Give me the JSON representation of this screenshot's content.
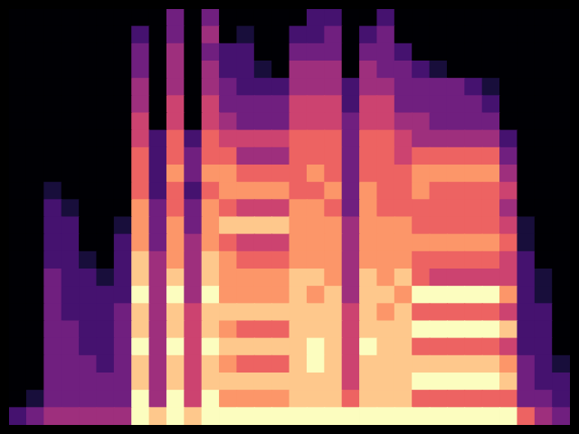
{
  "chart_data": {
    "type": "heatmap",
    "tick_labels": false,
    "grid": false,
    "cells": [
      [
        0,
        0,
        0,
        0,
        0,
        0,
        0,
        0,
        0,
        3,
        0,
        3,
        0,
        0,
        0,
        0,
        0,
        2,
        2,
        0,
        0,
        2,
        0,
        0,
        0,
        0,
        0,
        0,
        0,
        0,
        0,
        0
      ],
      [
        0,
        0,
        0,
        0,
        0,
        0,
        0,
        2,
        0,
        3,
        0,
        4,
        0,
        1,
        0,
        0,
        2,
        2,
        3,
        0,
        2,
        3,
        0,
        0,
        0,
        0,
        0,
        0,
        0,
        0,
        0,
        0
      ],
      [
        0,
        0,
        0,
        0,
        0,
        0,
        0,
        3,
        0,
        4,
        0,
        3,
        2,
        2,
        0,
        0,
        3,
        3,
        3,
        0,
        3,
        3,
        2,
        0,
        0,
        0,
        0,
        0,
        0,
        0,
        0,
        0
      ],
      [
        0,
        0,
        0,
        0,
        0,
        0,
        0,
        3,
        0,
        4,
        0,
        4,
        2,
        2,
        1,
        0,
        4,
        4,
        4,
        0,
        4,
        3,
        3,
        2,
        1,
        0,
        0,
        0,
        0,
        0,
        0,
        0
      ],
      [
        0,
        0,
        0,
        0,
        0,
        0,
        0,
        4,
        0,
        4,
        0,
        4,
        3,
        2,
        2,
        2,
        4,
        4,
        4,
        2,
        4,
        4,
        3,
        3,
        3,
        3,
        2,
        1,
        0,
        0,
        0,
        0
      ],
      [
        0,
        0,
        0,
        0,
        0,
        0,
        0,
        4,
        0,
        5,
        0,
        5,
        3,
        3,
        3,
        3,
        5,
        5,
        5,
        2,
        5,
        5,
        3,
        3,
        3,
        3,
        3,
        2,
        0,
        0,
        0,
        0
      ],
      [
        0,
        0,
        0,
        0,
        0,
        0,
        0,
        5,
        0,
        5,
        0,
        5,
        4,
        3,
        3,
        3,
        5,
        5,
        5,
        3,
        5,
        5,
        4,
        4,
        3,
        3,
        3,
        3,
        0,
        0,
        0,
        0
      ],
      [
        0,
        0,
        0,
        0,
        0,
        0,
        0,
        5,
        2,
        6,
        2,
        6,
        5,
        5,
        5,
        5,
        6,
        6,
        6,
        3,
        6,
        6,
        5,
        4,
        4,
        4,
        4,
        4,
        2,
        0,
        0,
        0
      ],
      [
        0,
        0,
        0,
        0,
        0,
        0,
        0,
        6,
        2,
        6,
        3,
        6,
        6,
        4,
        4,
        4,
        6,
        6,
        6,
        3,
        6,
        6,
        5,
        6,
        6,
        6,
        6,
        6,
        3,
        0,
        0,
        0
      ],
      [
        0,
        0,
        0,
        0,
        0,
        0,
        0,
        6,
        2,
        7,
        3,
        7,
        7,
        6,
        6,
        6,
        6,
        7,
        6,
        3,
        6,
        6,
        6,
        7,
        7,
        7,
        7,
        7,
        4,
        0,
        0,
        0
      ],
      [
        0,
        0,
        1,
        0,
        0,
        0,
        0,
        6,
        2,
        6,
        2,
        6,
        7,
        7,
        7,
        7,
        6,
        6,
        7,
        3,
        7,
        6,
        6,
        7,
        6,
        6,
        6,
        6,
        5,
        0,
        0,
        0
      ],
      [
        0,
        0,
        2,
        1,
        0,
        0,
        0,
        7,
        3,
        6,
        3,
        7,
        6,
        5,
        5,
        5,
        7,
        7,
        6,
        3,
        7,
        6,
        6,
        6,
        6,
        6,
        6,
        6,
        4,
        0,
        0,
        0
      ],
      [
        0,
        0,
        2,
        2,
        0,
        0,
        1,
        7,
        3,
        7,
        3,
        7,
        8,
        8,
        8,
        8,
        7,
        7,
        7,
        4,
        7,
        7,
        7,
        6,
        6,
        6,
        6,
        6,
        5,
        1,
        0,
        0
      ],
      [
        0,
        0,
        2,
        2,
        0,
        0,
        2,
        7,
        3,
        7,
        4,
        7,
        6,
        5,
        5,
        5,
        7,
        7,
        7,
        4,
        7,
        7,
        7,
        7,
        7,
        7,
        7,
        7,
        6,
        1,
        0,
        0
      ],
      [
        0,
        0,
        2,
        2,
        1,
        0,
        2,
        8,
        4,
        7,
        4,
        8,
        7,
        6,
        6,
        6,
        7,
        7,
        7,
        4,
        7,
        7,
        7,
        6,
        6,
        6,
        6,
        6,
        5,
        2,
        0,
        0
      ],
      [
        0,
        0,
        3,
        2,
        2,
        1,
        2,
        8,
        4,
        8,
        4,
        8,
        7,
        7,
        7,
        7,
        8,
        8,
        7,
        4,
        8,
        7,
        8,
        6,
        5,
        5,
        5,
        5,
        5,
        2,
        1,
        0
      ],
      [
        0,
        0,
        3,
        2,
        2,
        2,
        2,
        9,
        4,
        9,
        4,
        9,
        7,
        7,
        7,
        7,
        8,
        7,
        8,
        4,
        8,
        8,
        7,
        9,
        9,
        9,
        9,
        9,
        7,
        2,
        1,
        0
      ],
      [
        0,
        0,
        3,
        2,
        2,
        2,
        3,
        8,
        4,
        8,
        5,
        8,
        8,
        8,
        8,
        8,
        8,
        8,
        8,
        5,
        8,
        7,
        8,
        6,
        6,
        6,
        6,
        6,
        5,
        2,
        2,
        0
      ],
      [
        0,
        0,
        3,
        3,
        2,
        2,
        3,
        8,
        4,
        8,
        5,
        8,
        7,
        6,
        6,
        6,
        8,
        8,
        8,
        5,
        8,
        8,
        8,
        9,
        9,
        9,
        9,
        9,
        8,
        2,
        2,
        0
      ],
      [
        0,
        0,
        3,
        3,
        2,
        2,
        3,
        9,
        4,
        9,
        5,
        9,
        8,
        8,
        8,
        8,
        8,
        9,
        8,
        5,
        9,
        8,
        8,
        6,
        6,
        6,
        6,
        6,
        5,
        2,
        2,
        0
      ],
      [
        0,
        0,
        3,
        3,
        3,
        2,
        3,
        8,
        4,
        8,
        5,
        8,
        7,
        6,
        6,
        6,
        8,
        9,
        8,
        5,
        8,
        8,
        8,
        8,
        8,
        8,
        8,
        8,
        7,
        3,
        2,
        1
      ],
      [
        0,
        0,
        3,
        3,
        3,
        3,
        3,
        8,
        4,
        8,
        5,
        8,
        8,
        8,
        8,
        8,
        8,
        8,
        8,
        5,
        8,
        8,
        8,
        9,
        9,
        9,
        9,
        9,
        8,
        3,
        2,
        2
      ],
      [
        0,
        1,
        3,
        3,
        3,
        3,
        3,
        9,
        4,
        9,
        5,
        9,
        7,
        7,
        7,
        7,
        8,
        8,
        8,
        6,
        8,
        8,
        8,
        6,
        6,
        6,
        6,
        6,
        6,
        3,
        3,
        2
      ],
      [
        2,
        3,
        4,
        4,
        4,
        4,
        4,
        9,
        8,
        9,
        8,
        9,
        9,
        9,
        9,
        9,
        9,
        9,
        9,
        9,
        9,
        9,
        9,
        9,
        9,
        9,
        9,
        9,
        9,
        6,
        4,
        3
      ]
    ]
  }
}
